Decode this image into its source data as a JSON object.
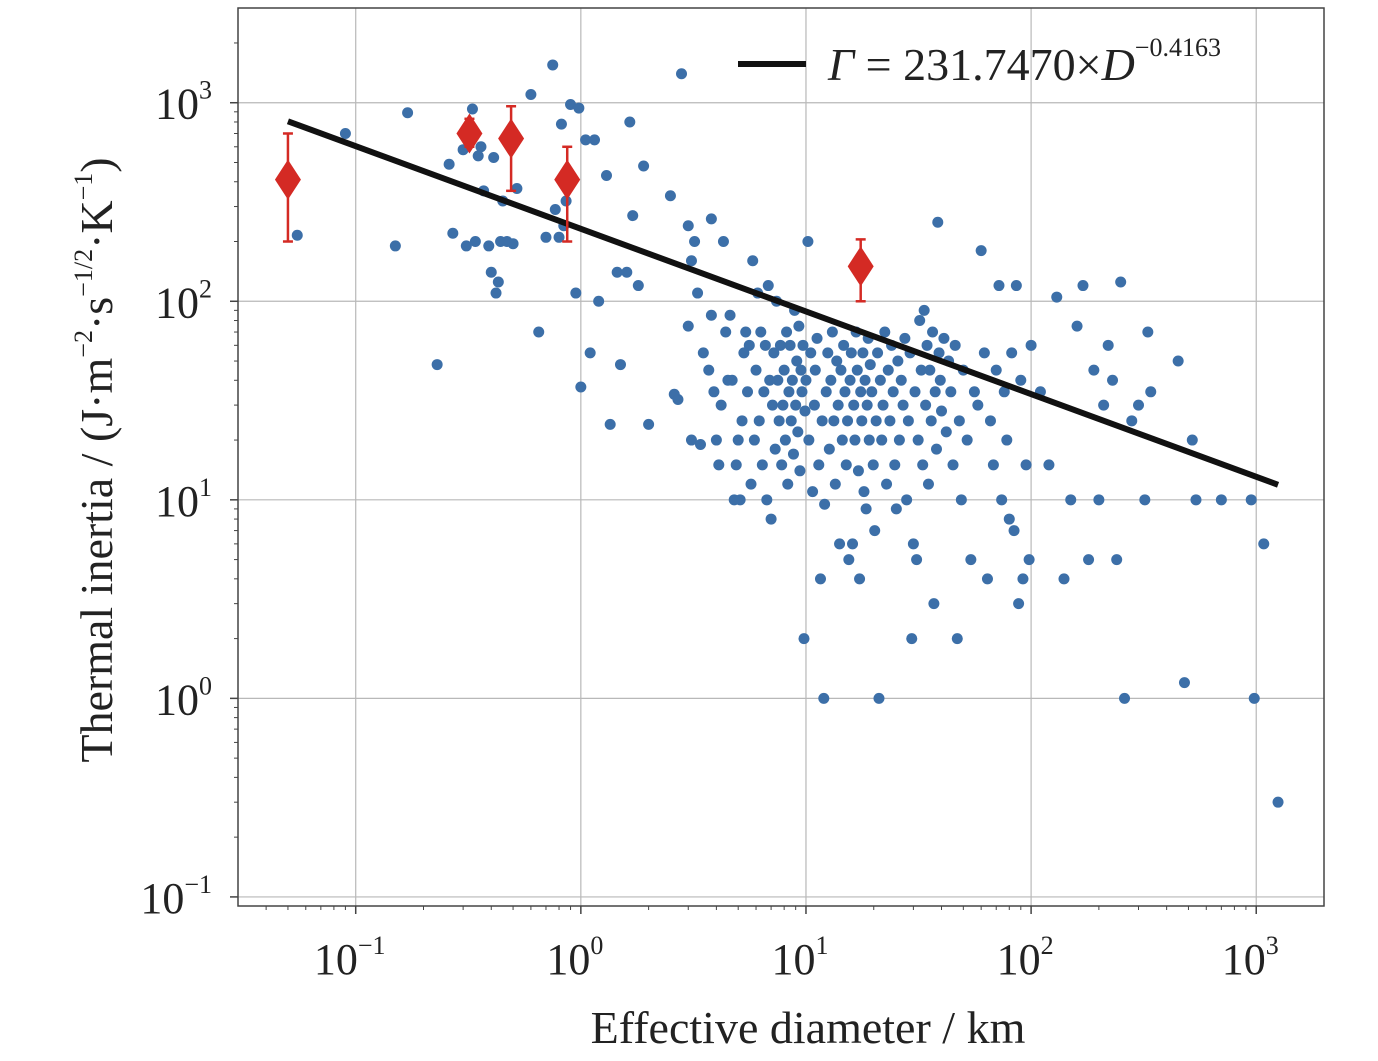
{
  "chart_data": {
    "type": "scatter",
    "xlabel": "Effective diameter / km",
    "ylabel_prefix": "Thermal inertia / (J·m",
    "ylabel_mid1": "·s",
    "ylabel_mid2": "·K",
    "ylabel_suffix": ")",
    "ylabel_sup1": "−2",
    "ylabel_sup2": "−1/2",
    "ylabel_sup3": "−1",
    "xscale": "log",
    "yscale": "log",
    "xlim": [
      0.03,
      2000
    ],
    "ylim": [
      0.09,
      3000
    ],
    "grid": true,
    "x_ticks": [
      {
        "value": 0.1,
        "base": "10",
        "exp": "−1"
      },
      {
        "value": 1,
        "base": "10",
        "exp": "0"
      },
      {
        "value": 10,
        "base": "10",
        "exp": "1"
      },
      {
        "value": 100,
        "base": "10",
        "exp": "2"
      },
      {
        "value": 1000,
        "base": "10",
        "exp": "3"
      }
    ],
    "y_ticks": [
      {
        "value": 0.1,
        "base": "10",
        "exp": "−1"
      },
      {
        "value": 1,
        "base": "10",
        "exp": "0"
      },
      {
        "value": 10,
        "base": "10",
        "exp": "1"
      },
      {
        "value": 100,
        "base": "10",
        "exp": "2"
      },
      {
        "value": 1000,
        "base": "10",
        "exp": "3"
      }
    ],
    "legend": {
      "position": "top-right",
      "label_gamma": "Γ",
      "label_eq": " = 231.7470×",
      "label_D": "D",
      "label_exp": "−0.4163"
    },
    "fit_line": {
      "a": 231.747,
      "b": -0.4163,
      "x_range": [
        0.05,
        1250
      ],
      "color": "#111111"
    },
    "colors": {
      "points": "#3c6fa8",
      "highlight": "#d42a24",
      "grid": "#b8b8b8",
      "axes": "#444444"
    },
    "highlight": [
      {
        "x": 0.05,
        "y": 410,
        "ylo": 200,
        "yhi": 700
      },
      {
        "x": 0.32,
        "y": 700,
        "ylo": 600,
        "yhi": 830
      },
      {
        "x": 0.49,
        "y": 660,
        "ylo": 360,
        "yhi": 960
      },
      {
        "x": 0.87,
        "y": 410,
        "ylo": 200,
        "yhi": 600
      },
      {
        "x": 17.5,
        "y": 150,
        "ylo": 100,
        "yhi": 205
      }
    ],
    "points": [
      [
        0.055,
        215
      ],
      [
        0.09,
        700
      ],
      [
        0.15,
        190
      ],
      [
        0.17,
        890
      ],
      [
        0.23,
        48
      ],
      [
        0.26,
        490
      ],
      [
        0.27,
        220
      ],
      [
        0.3,
        580
      ],
      [
        0.31,
        190
      ],
      [
        0.33,
        930
      ],
      [
        0.34,
        200
      ],
      [
        0.35,
        540
      ],
      [
        0.36,
        600
      ],
      [
        0.37,
        360
      ],
      [
        0.39,
        190
      ],
      [
        0.4,
        140
      ],
      [
        0.41,
        530
      ],
      [
        0.42,
        110
      ],
      [
        0.43,
        125
      ],
      [
        0.44,
        200
      ],
      [
        0.45,
        320
      ],
      [
        0.47,
        200
      ],
      [
        0.5,
        195
      ],
      [
        0.52,
        370
      ],
      [
        0.6,
        1100
      ],
      [
        0.65,
        70
      ],
      [
        0.7,
        210
      ],
      [
        0.75,
        1550
      ],
      [
        0.77,
        290
      ],
      [
        0.8,
        210
      ],
      [
        0.82,
        780
      ],
      [
        0.84,
        240
      ],
      [
        0.86,
        320
      ],
      [
        0.9,
        980
      ],
      [
        0.95,
        110
      ],
      [
        0.98,
        940
      ],
      [
        1.0,
        37
      ],
      [
        1.05,
        650
      ],
      [
        1.1,
        55
      ],
      [
        1.15,
        650
      ],
      [
        1.2,
        100
      ],
      [
        1.3,
        430
      ],
      [
        1.35,
        24
      ],
      [
        1.45,
        140
      ],
      [
        1.5,
        48
      ],
      [
        1.6,
        140
      ],
      [
        1.65,
        800
      ],
      [
        1.7,
        270
      ],
      [
        1.8,
        120
      ],
      [
        1.9,
        480
      ],
      [
        2.0,
        24
      ],
      [
        2.5,
        340
      ],
      [
        2.6,
        34
      ],
      [
        2.7,
        32
      ],
      [
        2.8,
        1400
      ],
      [
        3.0,
        75
      ],
      [
        3.0,
        240
      ],
      [
        3.1,
        20
      ],
      [
        3.1,
        160
      ],
      [
        3.2,
        200
      ],
      [
        3.3,
        110
      ],
      [
        3.4,
        19
      ],
      [
        3.5,
        55
      ],
      [
        3.7,
        45
      ],
      [
        3.8,
        260
      ],
      [
        3.8,
        85
      ],
      [
        3.9,
        35
      ],
      [
        4.0,
        20
      ],
      [
        4.1,
        15
      ],
      [
        4.2,
        30
      ],
      [
        4.3,
        200
      ],
      [
        4.4,
        70
      ],
      [
        4.5,
        40
      ],
      [
        4.6,
        85
      ],
      [
        4.7,
        40
      ],
      [
        4.8,
        10
      ],
      [
        4.9,
        15
      ],
      [
        5.0,
        20
      ],
      [
        5.1,
        10
      ],
      [
        5.2,
        25
      ],
      [
        5.3,
        55
      ],
      [
        5.4,
        70
      ],
      [
        5.5,
        35
      ],
      [
        5.6,
        60
      ],
      [
        5.7,
        12
      ],
      [
        5.8,
        160
      ],
      [
        5.9,
        20
      ],
      [
        6.0,
        45
      ],
      [
        6.1,
        110
      ],
      [
        6.2,
        25
      ],
      [
        6.3,
        70
      ],
      [
        6.4,
        15
      ],
      [
        6.5,
        35
      ],
      [
        6.6,
        60
      ],
      [
        6.7,
        10
      ],
      [
        6.8,
        120
      ],
      [
        6.9,
        40
      ],
      [
        7.0,
        8
      ],
      [
        7.1,
        30
      ],
      [
        7.2,
        55
      ],
      [
        7.3,
        18
      ],
      [
        7.4,
        100
      ],
      [
        7.5,
        40
      ],
      [
        7.6,
        25
      ],
      [
        7.7,
        60
      ],
      [
        7.8,
        15
      ],
      [
        7.9,
        30
      ],
      [
        8.0,
        45
      ],
      [
        8.1,
        20
      ],
      [
        8.2,
        70
      ],
      [
        8.3,
        12
      ],
      [
        8.4,
        35
      ],
      [
        8.5,
        60
      ],
      [
        8.6,
        25
      ],
      [
        8.7,
        40
      ],
      [
        8.8,
        17
      ],
      [
        8.9,
        90
      ],
      [
        9.0,
        30
      ],
      [
        9.1,
        50
      ],
      [
        9.2,
        22
      ],
      [
        9.3,
        75
      ],
      [
        9.4,
        14
      ],
      [
        9.5,
        45
      ],
      [
        9.6,
        35
      ],
      [
        9.7,
        60
      ],
      [
        9.8,
        2
      ],
      [
        9.9,
        28
      ],
      [
        10.0,
        40
      ],
      [
        10.2,
        200
      ],
      [
        10.3,
        20
      ],
      [
        10.5,
        55
      ],
      [
        10.7,
        11
      ],
      [
        10.9,
        30
      ],
      [
        11.0,
        45
      ],
      [
        11.2,
        65
      ],
      [
        11.4,
        15
      ],
      [
        11.6,
        4
      ],
      [
        11.8,
        25
      ],
      [
        12.0,
        1
      ],
      [
        12.1,
        9.5
      ],
      [
        12.3,
        35
      ],
      [
        12.5,
        55
      ],
      [
        12.7,
        18
      ],
      [
        12.9,
        40
      ],
      [
        13.1,
        70
      ],
      [
        13.3,
        25
      ],
      [
        13.5,
        12
      ],
      [
        13.7,
        50
      ],
      [
        13.9,
        30
      ],
      [
        14.1,
        6
      ],
      [
        14.3,
        45
      ],
      [
        14.5,
        20
      ],
      [
        14.7,
        60
      ],
      [
        14.9,
        35
      ],
      [
        15.1,
        15
      ],
      [
        15.3,
        25
      ],
      [
        15.5,
        5
      ],
      [
        15.7,
        40
      ],
      [
        15.9,
        55
      ],
      [
        16.1,
        6
      ],
      [
        16.3,
        30
      ],
      [
        16.5,
        20
      ],
      [
        16.7,
        70
      ],
      [
        16.9,
        45
      ],
      [
        17.1,
        14
      ],
      [
        17.3,
        4
      ],
      [
        17.5,
        35
      ],
      [
        17.7,
        25
      ],
      [
        17.9,
        55
      ],
      [
        18.1,
        11
      ],
      [
        18.3,
        40
      ],
      [
        18.5,
        9
      ],
      [
        18.7,
        30
      ],
      [
        18.9,
        65
      ],
      [
        19.1,
        20
      ],
      [
        19.3,
        48
      ],
      [
        19.6,
        35
      ],
      [
        19.9,
        15
      ],
      [
        20.2,
        7
      ],
      [
        20.5,
        25
      ],
      [
        20.8,
        55
      ],
      [
        21.1,
        1
      ],
      [
        21.4,
        40
      ],
      [
        21.7,
        20
      ],
      [
        22.0,
        30
      ],
      [
        22.4,
        70
      ],
      [
        22.8,
        12
      ],
      [
        23.2,
        45
      ],
      [
        23.6,
        25
      ],
      [
        24.0,
        60
      ],
      [
        24.4,
        35
      ],
      [
        24.8,
        15
      ],
      [
        25.2,
        9
      ],
      [
        25.6,
        50
      ],
      [
        26.0,
        20
      ],
      [
        26.5,
        40
      ],
      [
        27.0,
        30
      ],
      [
        27.5,
        65
      ],
      [
        28.0,
        10
      ],
      [
        28.5,
        25
      ],
      [
        29.0,
        55
      ],
      [
        29.5,
        2
      ],
      [
        30.0,
        6
      ],
      [
        30.5,
        35
      ],
      [
        31.0,
        5
      ],
      [
        31.5,
        20
      ],
      [
        32.0,
        80
      ],
      [
        32.5,
        45
      ],
      [
        33.0,
        15
      ],
      [
        33.5,
        90
      ],
      [
        34.0,
        30
      ],
      [
        34.5,
        60
      ],
      [
        35.0,
        12
      ],
      [
        35.5,
        45
      ],
      [
        36.0,
        25
      ],
      [
        36.5,
        70
      ],
      [
        37.0,
        3
      ],
      [
        37.5,
        35
      ],
      [
        38.0,
        18
      ],
      [
        38.5,
        250
      ],
      [
        39.0,
        55
      ],
      [
        39.5,
        40
      ],
      [
        40.0,
        28
      ],
      [
        41.0,
        65
      ],
      [
        42.0,
        22
      ],
      [
        43.0,
        50
      ],
      [
        44.0,
        35
      ],
      [
        45.0,
        15
      ],
      [
        46.0,
        60
      ],
      [
        47.0,
        2
      ],
      [
        48.0,
        25
      ],
      [
        49.0,
        10
      ],
      [
        50.0,
        45
      ],
      [
        52.0,
        20
      ],
      [
        54.0,
        5
      ],
      [
        56.0,
        35
      ],
      [
        58.0,
        30
      ],
      [
        60.0,
        180
      ],
      [
        62.0,
        55
      ],
      [
        64.0,
        4
      ],
      [
        66.0,
        25
      ],
      [
        68.0,
        15
      ],
      [
        70.0,
        45
      ],
      [
        72.0,
        120
      ],
      [
        74.0,
        10
      ],
      [
        76.0,
        35
      ],
      [
        78.0,
        20
      ],
      [
        80.0,
        8
      ],
      [
        82.0,
        55
      ],
      [
        84.0,
        7
      ],
      [
        86.0,
        120
      ],
      [
        88.0,
        3
      ],
      [
        90.0,
        40
      ],
      [
        92.0,
        4
      ],
      [
        95.0,
        15
      ],
      [
        98.0,
        5
      ],
      [
        100.0,
        60
      ],
      [
        110.0,
        35
      ],
      [
        120.0,
        15
      ],
      [
        130.0,
        105
      ],
      [
        140.0,
        4
      ],
      [
        150.0,
        10
      ],
      [
        160.0,
        75
      ],
      [
        170.0,
        120
      ],
      [
        180.0,
        5
      ],
      [
        190.0,
        45
      ],
      [
        200.0,
        10
      ],
      [
        210.0,
        30
      ],
      [
        220.0,
        60
      ],
      [
        230.0,
        40
      ],
      [
        240.0,
        5
      ],
      [
        250.0,
        125
      ],
      [
        260.0,
        1
      ],
      [
        280.0,
        25
      ],
      [
        300.0,
        30
      ],
      [
        320.0,
        10
      ],
      [
        330.0,
        70
      ],
      [
        340.0,
        35
      ],
      [
        450.0,
        50
      ],
      [
        480.0,
        1.2
      ],
      [
        520.0,
        20
      ],
      [
        540.0,
        10
      ],
      [
        700.0,
        10
      ],
      [
        950.0,
        10
      ],
      [
        980.0,
        1
      ],
      [
        1080.0,
        6
      ],
      [
        1250.0,
        0.3
      ]
    ]
  }
}
